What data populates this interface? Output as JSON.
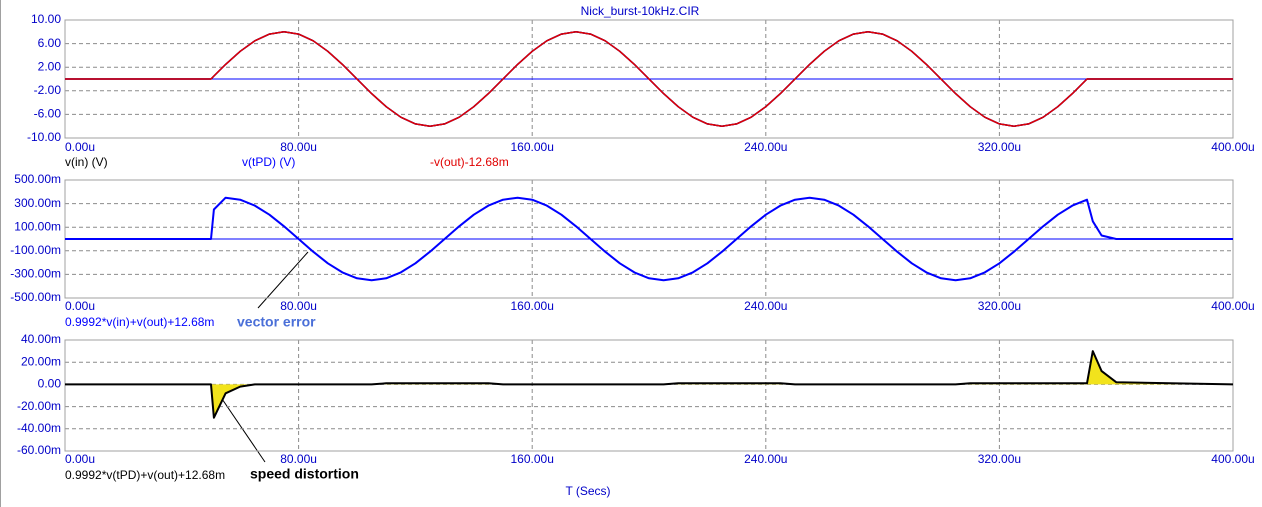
{
  "chart_data": [
    {
      "type": "line",
      "title": "Nick_burst-10kHz.CIR",
      "xlim": [
        0,
        400
      ],
      "xticks": [
        {
          "value": 0,
          "label": "0.00u"
        },
        {
          "value": 80,
          "label": "80.00u"
        },
        {
          "value": 160,
          "label": "160.00u"
        },
        {
          "value": 240,
          "label": "240.00u"
        },
        {
          "value": 320,
          "label": "320.00u"
        },
        {
          "value": 400,
          "label": "400.00u"
        }
      ],
      "ylim": [
        -10,
        10
      ],
      "yticks": [
        {
          "value": 10,
          "label": "10.00"
        },
        {
          "value": 6,
          "label": "6.00"
        },
        {
          "value": 2,
          "label": "2.00"
        },
        {
          "value": -2,
          "label": "-2.00"
        },
        {
          "value": -6,
          "label": "-6.00"
        },
        {
          "value": -10,
          "label": "-10.00"
        }
      ],
      "grid": true,
      "zero_line_color": "#0000ff",
      "x": [
        0,
        50,
        51,
        55,
        60,
        65,
        70,
        75,
        80,
        85,
        90,
        95,
        100,
        105,
        110,
        115,
        120,
        125,
        130,
        135,
        140,
        145,
        150,
        155,
        160,
        165,
        170,
        175,
        180,
        185,
        190,
        195,
        200,
        205,
        210,
        215,
        220,
        225,
        230,
        235,
        240,
        245,
        250,
        255,
        260,
        265,
        270,
        275,
        280,
        285,
        290,
        295,
        300,
        305,
        310,
        315,
        320,
        325,
        330,
        335,
        340,
        345,
        350,
        352,
        355,
        360,
        400
      ],
      "series": [
        {
          "name": "v(in) (V)",
          "color": "#000000",
          "values": [
            0,
            0,
            0.5,
            2.47,
            4.7,
            6.47,
            7.61,
            8,
            7.61,
            6.47,
            4.7,
            2.47,
            0,
            -2.47,
            -4.7,
            -6.47,
            -7.61,
            -8,
            -7.61,
            -6.47,
            -4.7,
            -2.47,
            0,
            2.47,
            4.7,
            6.47,
            7.61,
            8,
            7.61,
            6.47,
            4.7,
            2.47,
            0,
            -2.47,
            -4.7,
            -6.47,
            -7.61,
            -8,
            -7.61,
            -6.47,
            -4.7,
            -2.47,
            0,
            2.47,
            4.7,
            6.47,
            7.61,
            8,
            7.61,
            6.47,
            4.7,
            2.47,
            0,
            -2.47,
            -4.7,
            -6.47,
            -7.61,
            -8,
            -7.61,
            -6.47,
            -4.7,
            -2.47,
            0,
            0,
            0,
            0,
            0
          ]
        },
        {
          "name": "v(tPD) (V)",
          "color": "#0000ff",
          "values": [
            0,
            0,
            0.5,
            2.47,
            4.7,
            6.47,
            7.61,
            8,
            7.61,
            6.47,
            4.7,
            2.47,
            0,
            -2.47,
            -4.7,
            -6.47,
            -7.61,
            -8,
            -7.61,
            -6.47,
            -4.7,
            -2.47,
            0,
            2.47,
            4.7,
            6.47,
            7.61,
            8,
            7.61,
            6.47,
            4.7,
            2.47,
            0,
            -2.47,
            -4.7,
            -6.47,
            -7.61,
            -8,
            -7.61,
            -6.47,
            -4.7,
            -2.47,
            0,
            2.47,
            4.7,
            6.47,
            7.61,
            8,
            7.61,
            6.47,
            4.7,
            2.47,
            0,
            -2.47,
            -4.7,
            -6.47,
            -7.61,
            -8,
            -7.61,
            -6.47,
            -4.7,
            -2.47,
            0,
            0,
            0,
            0,
            0
          ]
        },
        {
          "name": "-v(out)-12.68m",
          "color": "#e00000",
          "values": [
            0,
            0,
            0.5,
            2.47,
            4.7,
            6.47,
            7.61,
            8,
            7.61,
            6.47,
            4.7,
            2.47,
            0,
            -2.47,
            -4.7,
            -6.47,
            -7.61,
            -8,
            -7.61,
            -6.47,
            -4.7,
            -2.47,
            0,
            2.47,
            4.7,
            6.47,
            7.61,
            8,
            7.61,
            6.47,
            4.7,
            2.47,
            0,
            -2.47,
            -4.7,
            -6.47,
            -7.61,
            -8,
            -7.61,
            -6.47,
            -4.7,
            -2.47,
            0,
            2.47,
            4.7,
            6.47,
            7.61,
            8,
            7.61,
            6.47,
            4.7,
            2.47,
            0,
            -2.47,
            -4.7,
            -6.47,
            -7.61,
            -8,
            -7.61,
            -6.47,
            -4.7,
            -2.47,
            0,
            0,
            0,
            0,
            0
          ]
        }
      ]
    },
    {
      "type": "line",
      "annotation": "vector error",
      "xlim": [
        0,
        400
      ],
      "xticks": [
        {
          "value": 0,
          "label": "0.00u"
        },
        {
          "value": 80,
          "label": "80.00u"
        },
        {
          "value": 160,
          "label": "160.00u"
        },
        {
          "value": 240,
          "label": "240.00u"
        },
        {
          "value": 320,
          "label": "320.00u"
        },
        {
          "value": 400,
          "label": "400.00u"
        }
      ],
      "ylim": [
        -0.5,
        0.5
      ],
      "yticks": [
        {
          "value": 0.5,
          "label": "500.00m"
        },
        {
          "value": 0.3,
          "label": "300.00m"
        },
        {
          "value": 0.1,
          "label": "100.00m"
        },
        {
          "value": -0.1,
          "label": "-100.00m"
        },
        {
          "value": -0.3,
          "label": "-300.00m"
        },
        {
          "value": -0.5,
          "label": "-500.00m"
        }
      ],
      "grid": true,
      "zero_line_color": "#0000ff",
      "x": [
        0,
        50,
        51,
        55,
        60,
        65,
        70,
        75,
        80,
        85,
        90,
        95,
        100,
        105,
        110,
        115,
        120,
        125,
        130,
        135,
        140,
        145,
        150,
        155,
        160,
        165,
        170,
        175,
        180,
        185,
        190,
        195,
        200,
        205,
        210,
        215,
        220,
        225,
        230,
        235,
        240,
        245,
        250,
        255,
        260,
        265,
        270,
        275,
        280,
        285,
        290,
        295,
        300,
        305,
        310,
        315,
        320,
        325,
        330,
        335,
        340,
        345,
        350,
        352,
        355,
        360,
        400
      ],
      "series": [
        {
          "name": "0.9992*v(in)+v(out)+12.68m",
          "color": "#0000ff",
          "values": [
            0,
            0,
            0.25,
            0.35,
            0.333,
            0.283,
            0.206,
            0.108,
            0,
            -0.108,
            -0.206,
            -0.283,
            -0.333,
            -0.35,
            -0.333,
            -0.283,
            -0.206,
            -0.108,
            0,
            0.108,
            0.206,
            0.283,
            0.333,
            0.35,
            0.333,
            0.283,
            0.206,
            0.108,
            0,
            -0.108,
            -0.206,
            -0.283,
            -0.333,
            -0.35,
            -0.333,
            -0.283,
            -0.206,
            -0.108,
            0,
            0.108,
            0.206,
            0.283,
            0.333,
            0.35,
            0.333,
            0.283,
            0.206,
            0.108,
            0,
            -0.108,
            -0.206,
            -0.283,
            -0.333,
            -0.35,
            -0.333,
            -0.283,
            -0.206,
            -0.108,
            0,
            0.108,
            0.206,
            0.283,
            0.333,
            0.15,
            0.03,
            0,
            0
          ]
        }
      ]
    },
    {
      "type": "line",
      "annotation": "speed distortion",
      "xlabel": "T (Secs)",
      "xlim": [
        0,
        400
      ],
      "xticks": [
        {
          "value": 0,
          "label": "0.00u"
        },
        {
          "value": 80,
          "label": "80.00u"
        },
        {
          "value": 160,
          "label": "160.00u"
        },
        {
          "value": 240,
          "label": "240.00u"
        },
        {
          "value": 320,
          "label": "320.00u"
        },
        {
          "value": 400,
          "label": "400.00u"
        }
      ],
      "ylim": [
        -0.06,
        0.04
      ],
      "yticks": [
        {
          "value": 0.04,
          "label": "40.00m"
        },
        {
          "value": 0.02,
          "label": "20.00m"
        },
        {
          "value": 0,
          "label": "0.00"
        },
        {
          "value": -0.02,
          "label": "-20.00m"
        },
        {
          "value": -0.04,
          "label": "-40.00m"
        },
        {
          "value": -0.06,
          "label": "-60.00m"
        }
      ],
      "grid": true,
      "x": [
        0,
        50,
        51,
        55,
        60,
        65,
        70,
        75,
        80,
        85,
        90,
        95,
        100,
        105,
        110,
        115,
        120,
        125,
        130,
        135,
        140,
        145,
        150,
        155,
        160,
        165,
        170,
        175,
        180,
        185,
        190,
        195,
        200,
        205,
        210,
        215,
        220,
        225,
        230,
        235,
        240,
        245,
        250,
        255,
        260,
        265,
        270,
        275,
        280,
        285,
        290,
        295,
        300,
        305,
        310,
        315,
        320,
        325,
        330,
        335,
        340,
        345,
        350,
        352,
        355,
        360,
        400
      ],
      "series": [
        {
          "name": "0.9992*v(tPD)+v(out)+12.68m",
          "color": "#000000",
          "fill": "#f2e31c",
          "values": [
            0,
            0,
            -0.03,
            -0.008,
            -0.002,
            0,
            0,
            0,
            0,
            0,
            0,
            0,
            0,
            0,
            0.001,
            0.001,
            0.001,
            0.001,
            0.001,
            0.001,
            0.001,
            0.001,
            0,
            0,
            0,
            0,
            0,
            0,
            0,
            0,
            0,
            0,
            0,
            0,
            0.001,
            0.001,
            0.001,
            0.001,
            0.001,
            0.001,
            0.001,
            0.001,
            0,
            0,
            0,
            0,
            0,
            0,
            0,
            0,
            0,
            0,
            0,
            0,
            0.001,
            0.001,
            0.001,
            0.001,
            0.001,
            0.001,
            0.001,
            0.001,
            0.001,
            0.03,
            0.012,
            0.002,
            0
          ]
        }
      ]
    }
  ]
}
